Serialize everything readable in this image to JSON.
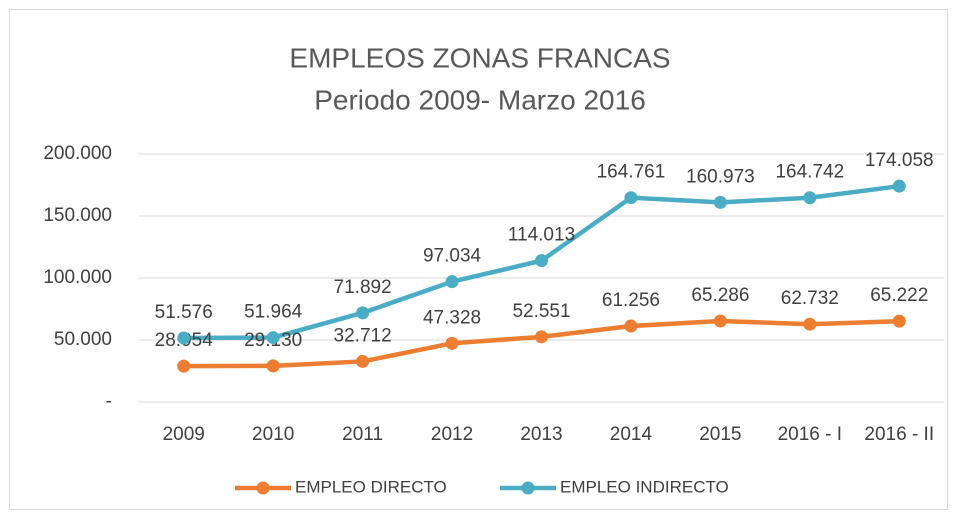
{
  "chart_data": {
    "type": "line",
    "title": "EMPLEOS ZONAS FRANCAS",
    "subtitle": "Periodo 2009- Marzo 2016",
    "categories": [
      "2009",
      "2010",
      "2011",
      "2012",
      "2013",
      "2014",
      "2015",
      "2016 - I",
      "2016 - II"
    ],
    "series": [
      {
        "name": "EMPLEO DIRECTO",
        "color": "#ED7D31",
        "values": [
          28954,
          29130,
          32712,
          47328,
          52551,
          61256,
          65286,
          62732,
          65222
        ],
        "value_labels": [
          "28.954",
          "29.130",
          "32.712",
          "47.328",
          "52.551",
          "61.256",
          "65.286",
          "62.732",
          "65.222"
        ]
      },
      {
        "name": "EMPLEO INDIRECTO",
        "color": "#4BACC6",
        "values": [
          51576,
          51964,
          71892,
          97034,
          114013,
          164761,
          160973,
          164742,
          174058
        ],
        "value_labels": [
          "51.576",
          "51.964",
          "71.892",
          "97.034",
          "114.013",
          "164.761",
          "160.973",
          "164.742",
          "174.058"
        ]
      }
    ],
    "ylim": [
      0,
      200000
    ],
    "yticks": [
      {
        "value": 0,
        "label": "-"
      },
      {
        "value": 50000,
        "label": "50.000"
      },
      {
        "value": 100000,
        "label": "100.000"
      },
      {
        "value": 150000,
        "label": "150.000"
      },
      {
        "value": 200000,
        "label": "200.000"
      }
    ],
    "grid": true,
    "legend": "bottom"
  }
}
